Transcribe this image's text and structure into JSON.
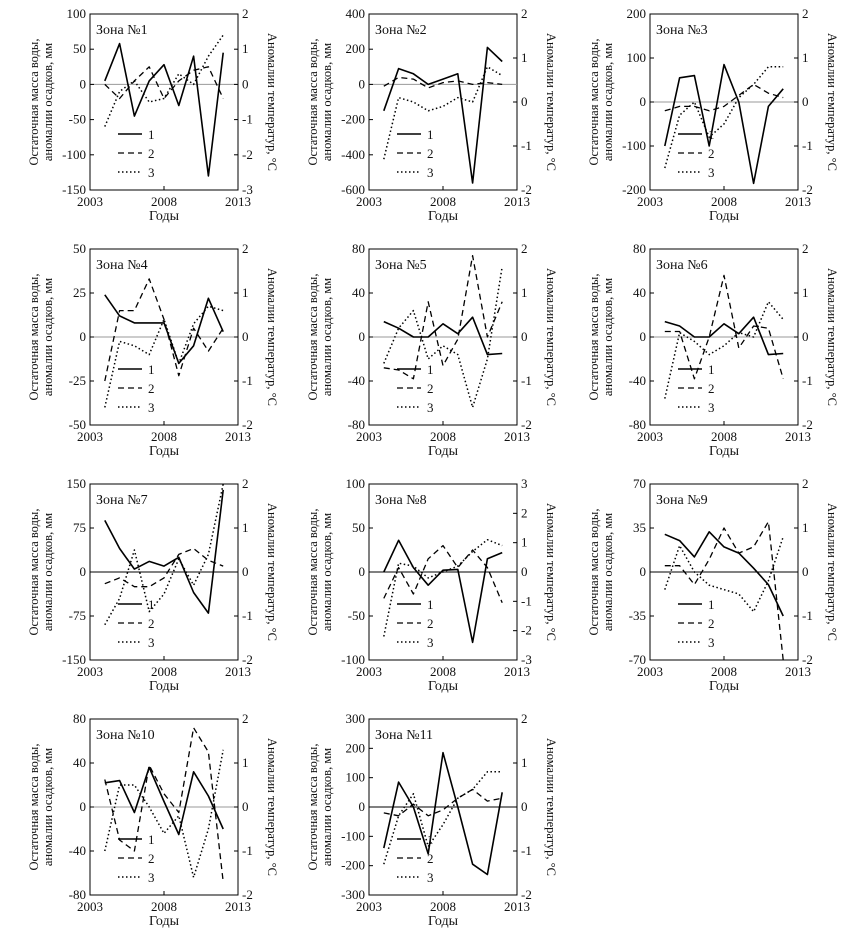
{
  "labels": {
    "xlabel": "Годы",
    "ylabel_left_line1": "Остаточная масса воды,",
    "ylabel_left_line2": "аномалии осадков, мм",
    "ylabel_right": "Аномалии температур, °С",
    "legend": [
      "1",
      "2",
      "3"
    ]
  },
  "chart_data": [
    {
      "type": "line",
      "title": "Зона №1",
      "x": [
        2004,
        2005,
        2006,
        2007,
        2008,
        2009,
        2010,
        2011,
        2012
      ],
      "xlim": [
        2003,
        2013
      ],
      "xticks": [
        2003,
        2008,
        2013
      ],
      "ylim": [
        -150,
        100
      ],
      "yticks": [
        -150,
        -100,
        -50,
        0,
        50,
        100
      ],
      "y2lim": [
        -3,
        2
      ],
      "y2ticks": [
        -3,
        -2,
        -1,
        0,
        1,
        2
      ],
      "series": [
        {
          "name": "1",
          "axis": "left",
          "values": [
            5,
            58,
            -45,
            5,
            28,
            -30,
            40,
            -130,
            45
          ]
        },
        {
          "name": "2",
          "axis": "left",
          "values": [
            0,
            -20,
            5,
            25,
            -20,
            5,
            20,
            25,
            -20
          ]
        },
        {
          "name": "3",
          "axis": "right",
          "values": [
            -1.2,
            -0.2,
            0.1,
            -0.5,
            -0.4,
            0.3,
            0,
            0.8,
            1.4
          ]
        }
      ]
    },
    {
      "type": "line",
      "title": "Зона №2",
      "x": [
        2004,
        2005,
        2006,
        2007,
        2008,
        2009,
        2010,
        2011,
        2012
      ],
      "xlim": [
        2003,
        2013
      ],
      "xticks": [
        2003,
        2008,
        2013
      ],
      "ylim": [
        -600,
        400
      ],
      "yticks": [
        -600,
        -400,
        -200,
        0,
        200,
        400
      ],
      "y2lim": [
        -2,
        2
      ],
      "y2ticks": [
        -2,
        -1,
        0,
        1,
        2
      ],
      "series": [
        {
          "name": "1",
          "axis": "left",
          "values": [
            -150,
            90,
            60,
            0,
            30,
            60,
            -560,
            210,
            130
          ]
        },
        {
          "name": "2",
          "axis": "left",
          "values": [
            -10,
            40,
            30,
            -20,
            10,
            20,
            0,
            10,
            0
          ]
        },
        {
          "name": "3",
          "axis": "right",
          "values": [
            -1.3,
            0.1,
            0,
            -0.2,
            -0.1,
            0.1,
            0,
            0.8,
            0.6
          ]
        }
      ]
    },
    {
      "type": "line",
      "title": "Зона №3",
      "x": [
        2004,
        2005,
        2006,
        2007,
        2008,
        2009,
        2010,
        2011,
        2012
      ],
      "xlim": [
        2003,
        2013
      ],
      "xticks": [
        2003,
        2008,
        2013
      ],
      "ylim": [
        -200,
        200
      ],
      "yticks": [
        -200,
        -100,
        0,
        100,
        200
      ],
      "y2lim": [
        -2,
        2
      ],
      "y2ticks": [
        -2,
        -1,
        0,
        1,
        2
      ],
      "series": [
        {
          "name": "1",
          "axis": "left",
          "values": [
            -100,
            55,
            60,
            -100,
            85,
            0,
            -185,
            -10,
            30
          ]
        },
        {
          "name": "2",
          "axis": "left",
          "values": [
            -20,
            -10,
            -10,
            -20,
            -10,
            15,
            40,
            20,
            10
          ]
        },
        {
          "name": "3",
          "axis": "right",
          "values": [
            -1.5,
            -0.3,
            0,
            -0.8,
            -0.5,
            0.1,
            0.4,
            0.8,
            0.8
          ]
        }
      ]
    },
    {
      "type": "line",
      "title": "Зона №4",
      "x": [
        2004,
        2005,
        2006,
        2007,
        2008,
        2009,
        2010,
        2011,
        2012
      ],
      "xlim": [
        2003,
        2013
      ],
      "xticks": [
        2003,
        2008,
        2013
      ],
      "ylim": [
        -50,
        50
      ],
      "yticks": [
        -50,
        -25,
        0,
        25,
        50
      ],
      "y2lim": [
        -2,
        2
      ],
      "y2ticks": [
        -2,
        -1,
        0,
        1,
        2
      ],
      "series": [
        {
          "name": "1",
          "axis": "left",
          "values": [
            24,
            12,
            8,
            8,
            8,
            -15,
            -5,
            22,
            3
          ]
        },
        {
          "name": "2",
          "axis": "left",
          "values": [
            -25,
            15,
            15,
            33,
            10,
            -22,
            5,
            -8,
            5
          ]
        },
        {
          "name": "3",
          "axis": "right",
          "values": [
            -1.6,
            -0.1,
            -0.2,
            -0.4,
            0.4,
            -0.6,
            0.3,
            0.7,
            0.6
          ]
        }
      ]
    },
    {
      "type": "line",
      "title": "Зона №5",
      "x": [
        2004,
        2005,
        2006,
        2007,
        2008,
        2009,
        2010,
        2011,
        2012
      ],
      "xlim": [
        2003,
        2013
      ],
      "xticks": [
        2003,
        2008,
        2013
      ],
      "ylim": [
        -80,
        80
      ],
      "yticks": [
        -80,
        -40,
        0,
        40,
        80
      ],
      "y2lim": [
        -2,
        2
      ],
      "y2ticks": [
        -2,
        -1,
        0,
        1,
        2
      ],
      "series": [
        {
          "name": "1",
          "axis": "left",
          "values": [
            14,
            8,
            0,
            0,
            12,
            3,
            18,
            -16,
            -15
          ]
        },
        {
          "name": "2",
          "axis": "left",
          "values": [
            -28,
            -30,
            -38,
            32,
            -26,
            -2,
            74,
            0,
            32
          ]
        },
        {
          "name": "3",
          "axis": "right",
          "values": [
            -0.6,
            0.2,
            0.6,
            -0.5,
            -0.2,
            -0.4,
            -1.6,
            -0.5,
            1.6
          ]
        }
      ]
    },
    {
      "type": "line",
      "title": "Зона №6",
      "x": [
        2004,
        2005,
        2006,
        2007,
        2008,
        2009,
        2010,
        2011,
        2012
      ],
      "xlim": [
        2003,
        2013
      ],
      "xticks": [
        2003,
        2008,
        2013
      ],
      "ylim": [
        -80,
        80
      ],
      "yticks": [
        -80,
        -40,
        0,
        40,
        80
      ],
      "y2lim": [
        -2,
        2
      ],
      "y2ticks": [
        -2,
        -1,
        0,
        1,
        2
      ],
      "series": [
        {
          "name": "1",
          "axis": "left",
          "values": [
            14,
            10,
            0,
            0,
            12,
            3,
            18,
            -16,
            -15
          ]
        },
        {
          "name": "2",
          "axis": "left",
          "values": [
            5,
            5,
            -38,
            0,
            56,
            -10,
            10,
            8,
            -38
          ]
        },
        {
          "name": "3",
          "axis": "right",
          "values": [
            -1.4,
            0.1,
            -0.1,
            -0.4,
            -0.2,
            0.1,
            0,
            0.8,
            0.4
          ]
        }
      ]
    },
    {
      "type": "line",
      "title": "Зона №7",
      "x": [
        2004,
        2005,
        2006,
        2007,
        2008,
        2009,
        2010,
        2011,
        2012
      ],
      "xlim": [
        2003,
        2013
      ],
      "xticks": [
        2003,
        2008,
        2013
      ],
      "ylim": [
        -150,
        150
      ],
      "yticks": [
        -150,
        -75,
        0,
        75,
        150
      ],
      "y2lim": [
        -2,
        2
      ],
      "y2ticks": [
        -2,
        -1,
        0,
        1,
        2
      ],
      "series": [
        {
          "name": "1",
          "axis": "left",
          "values": [
            88,
            40,
            5,
            18,
            10,
            25,
            -35,
            -70,
            140
          ]
        },
        {
          "name": "2",
          "axis": "left",
          "values": [
            -20,
            -10,
            -25,
            -25,
            -10,
            30,
            40,
            20,
            10
          ]
        },
        {
          "name": "3",
          "axis": "right",
          "values": [
            -1.2,
            -0.6,
            0.5,
            -0.9,
            -0.5,
            0.3,
            -0.3,
            0.4,
            2.0
          ]
        }
      ]
    },
    {
      "type": "line",
      "title": "Зона №8",
      "x": [
        2004,
        2005,
        2006,
        2007,
        2008,
        2009,
        2010,
        2011,
        2012
      ],
      "xlim": [
        2003,
        2013
      ],
      "xticks": [
        2003,
        2008,
        2013
      ],
      "ylim": [
        -100,
        100
      ],
      "yticks": [
        -100,
        -50,
        0,
        50,
        100
      ],
      "y2lim": [
        -3,
        3
      ],
      "y2ticks": [
        -3,
        -2,
        -1,
        0,
        1,
        2,
        3
      ],
      "series": [
        {
          "name": "1",
          "axis": "left",
          "values": [
            0,
            36,
            5,
            -15,
            2,
            3,
            -80,
            15,
            22
          ]
        },
        {
          "name": "2",
          "axis": "left",
          "values": [
            -30,
            5,
            -25,
            15,
            30,
            5,
            25,
            5,
            -35
          ]
        },
        {
          "name": "3",
          "axis": "right",
          "values": [
            -2.2,
            0.3,
            0.2,
            -0.2,
            0,
            0.2,
            0.7,
            1.1,
            0.9
          ]
        }
      ]
    },
    {
      "type": "line",
      "title": "Зона №9",
      "x": [
        2004,
        2005,
        2006,
        2007,
        2008,
        2009,
        2010,
        2011,
        2012
      ],
      "xlim": [
        2003,
        2013
      ],
      "xticks": [
        2003,
        2008,
        2013
      ],
      "ylim": [
        -70,
        70
      ],
      "yticks": [
        -70,
        -35,
        0,
        35,
        70
      ],
      "y2lim": [
        -2,
        2
      ],
      "y2ticks": [
        -2,
        -1,
        0,
        1,
        2
      ],
      "series": [
        {
          "name": "1",
          "axis": "left",
          "values": [
            30,
            25,
            12,
            32,
            20,
            15,
            3,
            -10,
            -35
          ]
        },
        {
          "name": "2",
          "axis": "left",
          "values": [
            5,
            5,
            -10,
            10,
            35,
            15,
            20,
            40,
            -70
          ]
        },
        {
          "name": "3",
          "axis": "right",
          "values": [
            -0.4,
            0.6,
            0,
            -0.3,
            -0.4,
            -0.5,
            -0.9,
            -0.2,
            0.8
          ]
        }
      ]
    },
    {
      "type": "line",
      "title": "Зона №10",
      "x": [
        2004,
        2005,
        2006,
        2007,
        2008,
        2009,
        2010,
        2011,
        2012
      ],
      "xlim": [
        2003,
        2013
      ],
      "xticks": [
        2003,
        2008,
        2013
      ],
      "ylim": [
        -80,
        80
      ],
      "yticks": [
        -80,
        -40,
        0,
        40,
        80
      ],
      "y2lim": [
        -2,
        2
      ],
      "y2ticks": [
        -2,
        -1,
        0,
        1,
        2
      ],
      "series": [
        {
          "name": "1",
          "axis": "left",
          "values": [
            22,
            24,
            -5,
            36,
            5,
            -25,
            32,
            10,
            -20
          ]
        },
        {
          "name": "2",
          "axis": "left",
          "values": [
            25,
            -30,
            -40,
            38,
            12,
            -5,
            72,
            50,
            -68
          ]
        },
        {
          "name": "3",
          "axis": "right",
          "values": [
            -1.0,
            0.5,
            0.5,
            0,
            -0.6,
            -0.2,
            -1.6,
            -0.5,
            1.3
          ]
        }
      ]
    },
    {
      "type": "line",
      "title": "Зона №11",
      "x": [
        2004,
        2005,
        2006,
        2007,
        2008,
        2009,
        2010,
        2011,
        2012
      ],
      "xlim": [
        2003,
        2013
      ],
      "xticks": [
        2003,
        2008,
        2013
      ],
      "ylim": [
        -300,
        300
      ],
      "yticks": [
        -300,
        -200,
        -100,
        0,
        100,
        200,
        300
      ],
      "y2lim": [
        -2,
        2
      ],
      "y2ticks": [
        -2,
        -1,
        0,
        1,
        2
      ],
      "series": [
        {
          "name": "1",
          "axis": "left",
          "values": [
            -140,
            85,
            0,
            -160,
            185,
            0,
            -195,
            -230,
            50
          ]
        },
        {
          "name": "2",
          "axis": "left",
          "values": [
            -20,
            -30,
            10,
            -30,
            -10,
            30,
            60,
            20,
            30
          ]
        },
        {
          "name": "3",
          "axis": "right",
          "values": [
            -1.3,
            -0.2,
            0.3,
            -0.9,
            -0.4,
            0.2,
            0.4,
            0.8,
            0.8
          ]
        }
      ]
    }
  ]
}
